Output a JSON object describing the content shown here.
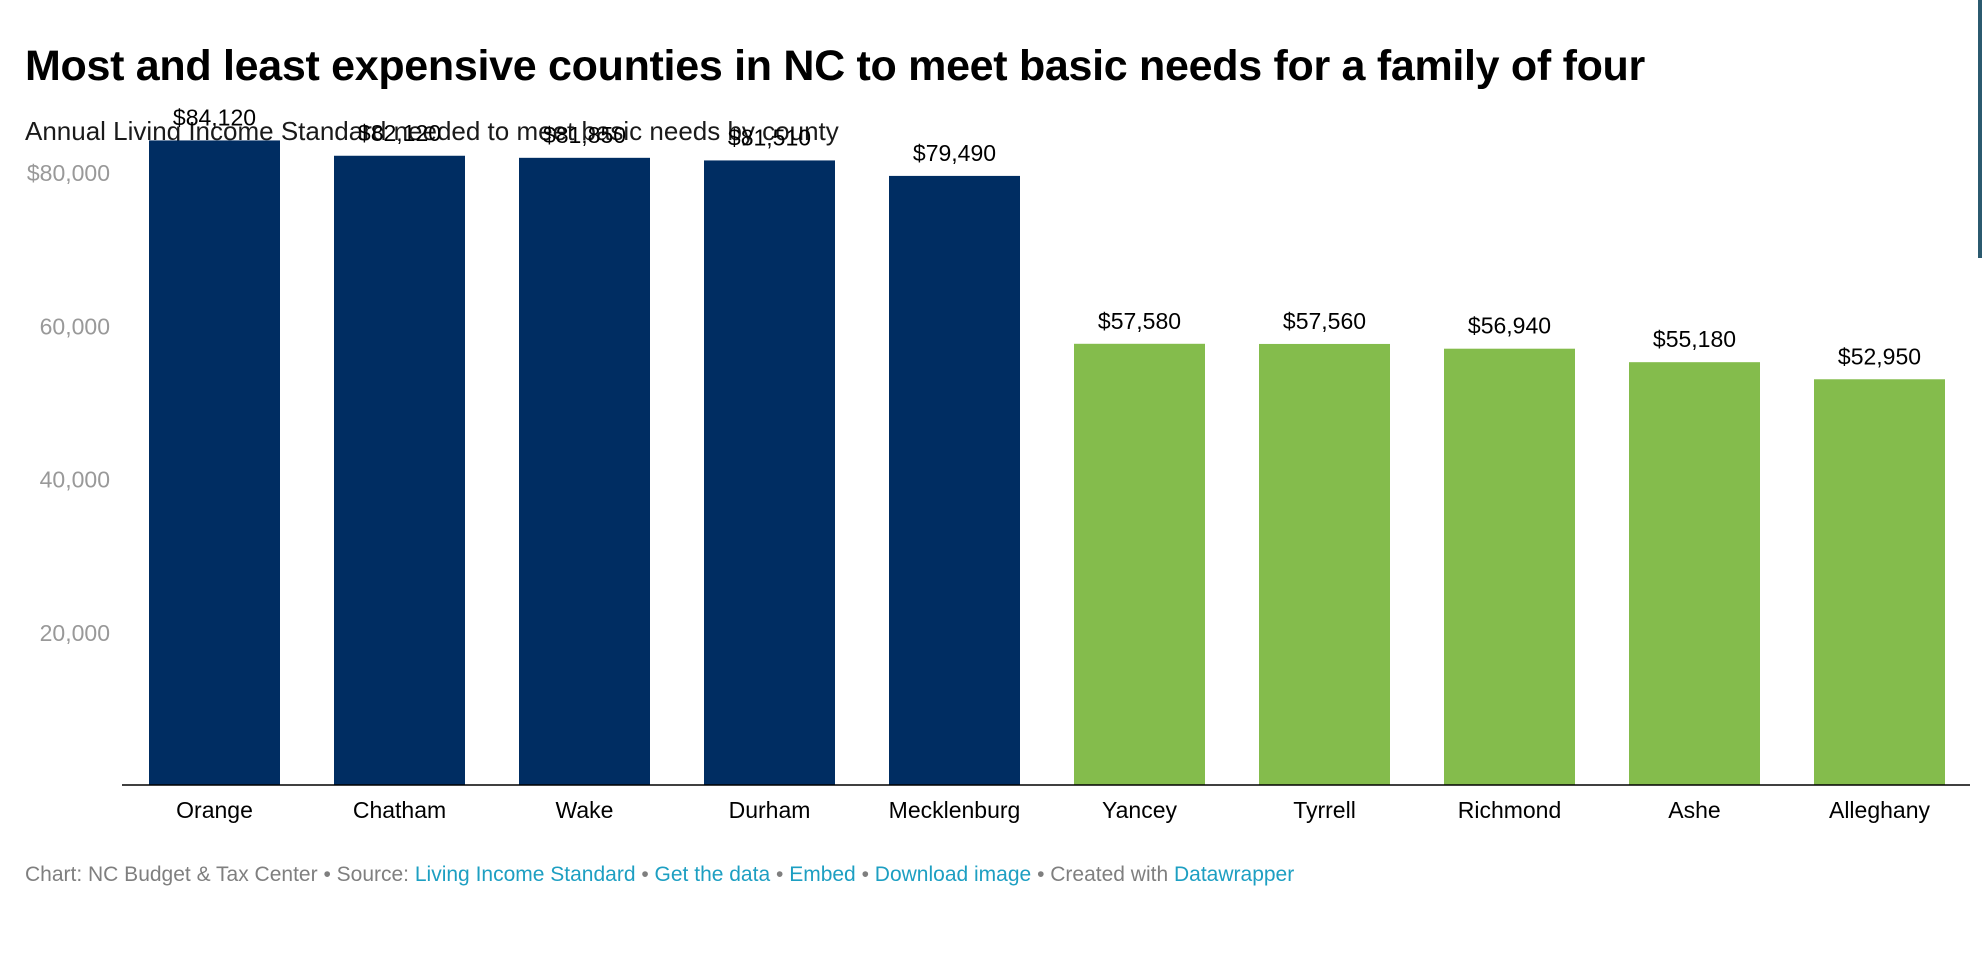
{
  "header": {
    "title": "Most and least expensive counties in NC to meet basic needs for a family of four",
    "subtitle": "Annual Living Income Standard needed to meet basic needs by county"
  },
  "chart_data": {
    "type": "bar",
    "title": "Most and least expensive counties in NC to meet basic needs for a family of four",
    "subtitle": "Annual Living Income Standard needed to meet basic needs by county",
    "categories": [
      "Orange",
      "Chatham",
      "Wake",
      "Durham",
      "Mecklenburg",
      "Yancey",
      "Tyrrell",
      "Richmond",
      "Ashe",
      "Alleghany"
    ],
    "values": [
      84120,
      82120,
      81850,
      81510,
      79490,
      57580,
      57560,
      56940,
      55180,
      52950
    ],
    "value_labels": [
      "$84,120",
      "$82,120",
      "$81,850",
      "$81,510",
      "$79,490",
      "$57,580",
      "$57,560",
      "$56,940",
      "$55,180",
      "$52,950"
    ],
    "bar_colors": [
      "#002d62",
      "#002d62",
      "#002d62",
      "#002d62",
      "#002d62",
      "#84bc4c",
      "#84bc4c",
      "#84bc4c",
      "#84bc4c",
      "#84bc4c"
    ],
    "yticks": [
      20000,
      40000,
      60000,
      80000
    ],
    "ytick_labels": [
      "20,000",
      "40,000",
      "60,000",
      "$80,000"
    ],
    "ylim": [
      0,
      90000
    ],
    "grid": false,
    "legend": "none",
    "xlabel": "",
    "ylabel": ""
  },
  "colors": {
    "most_expensive": "#002d62",
    "least_expensive": "#84bc4c",
    "tick_label": "#999999",
    "link": "#1d9fc2",
    "footer_text": "#7f7f7f"
  },
  "footer": {
    "chart_credit": "Chart: NC Budget & Tax Center",
    "source_prefix": "Source:",
    "source_link": "Living Income Standard",
    "get_data": "Get the data",
    "embed": "Embed",
    "download": "Download image",
    "created_with": "Created with",
    "datawrapper": "Datawrapper",
    "separator": "•"
  }
}
